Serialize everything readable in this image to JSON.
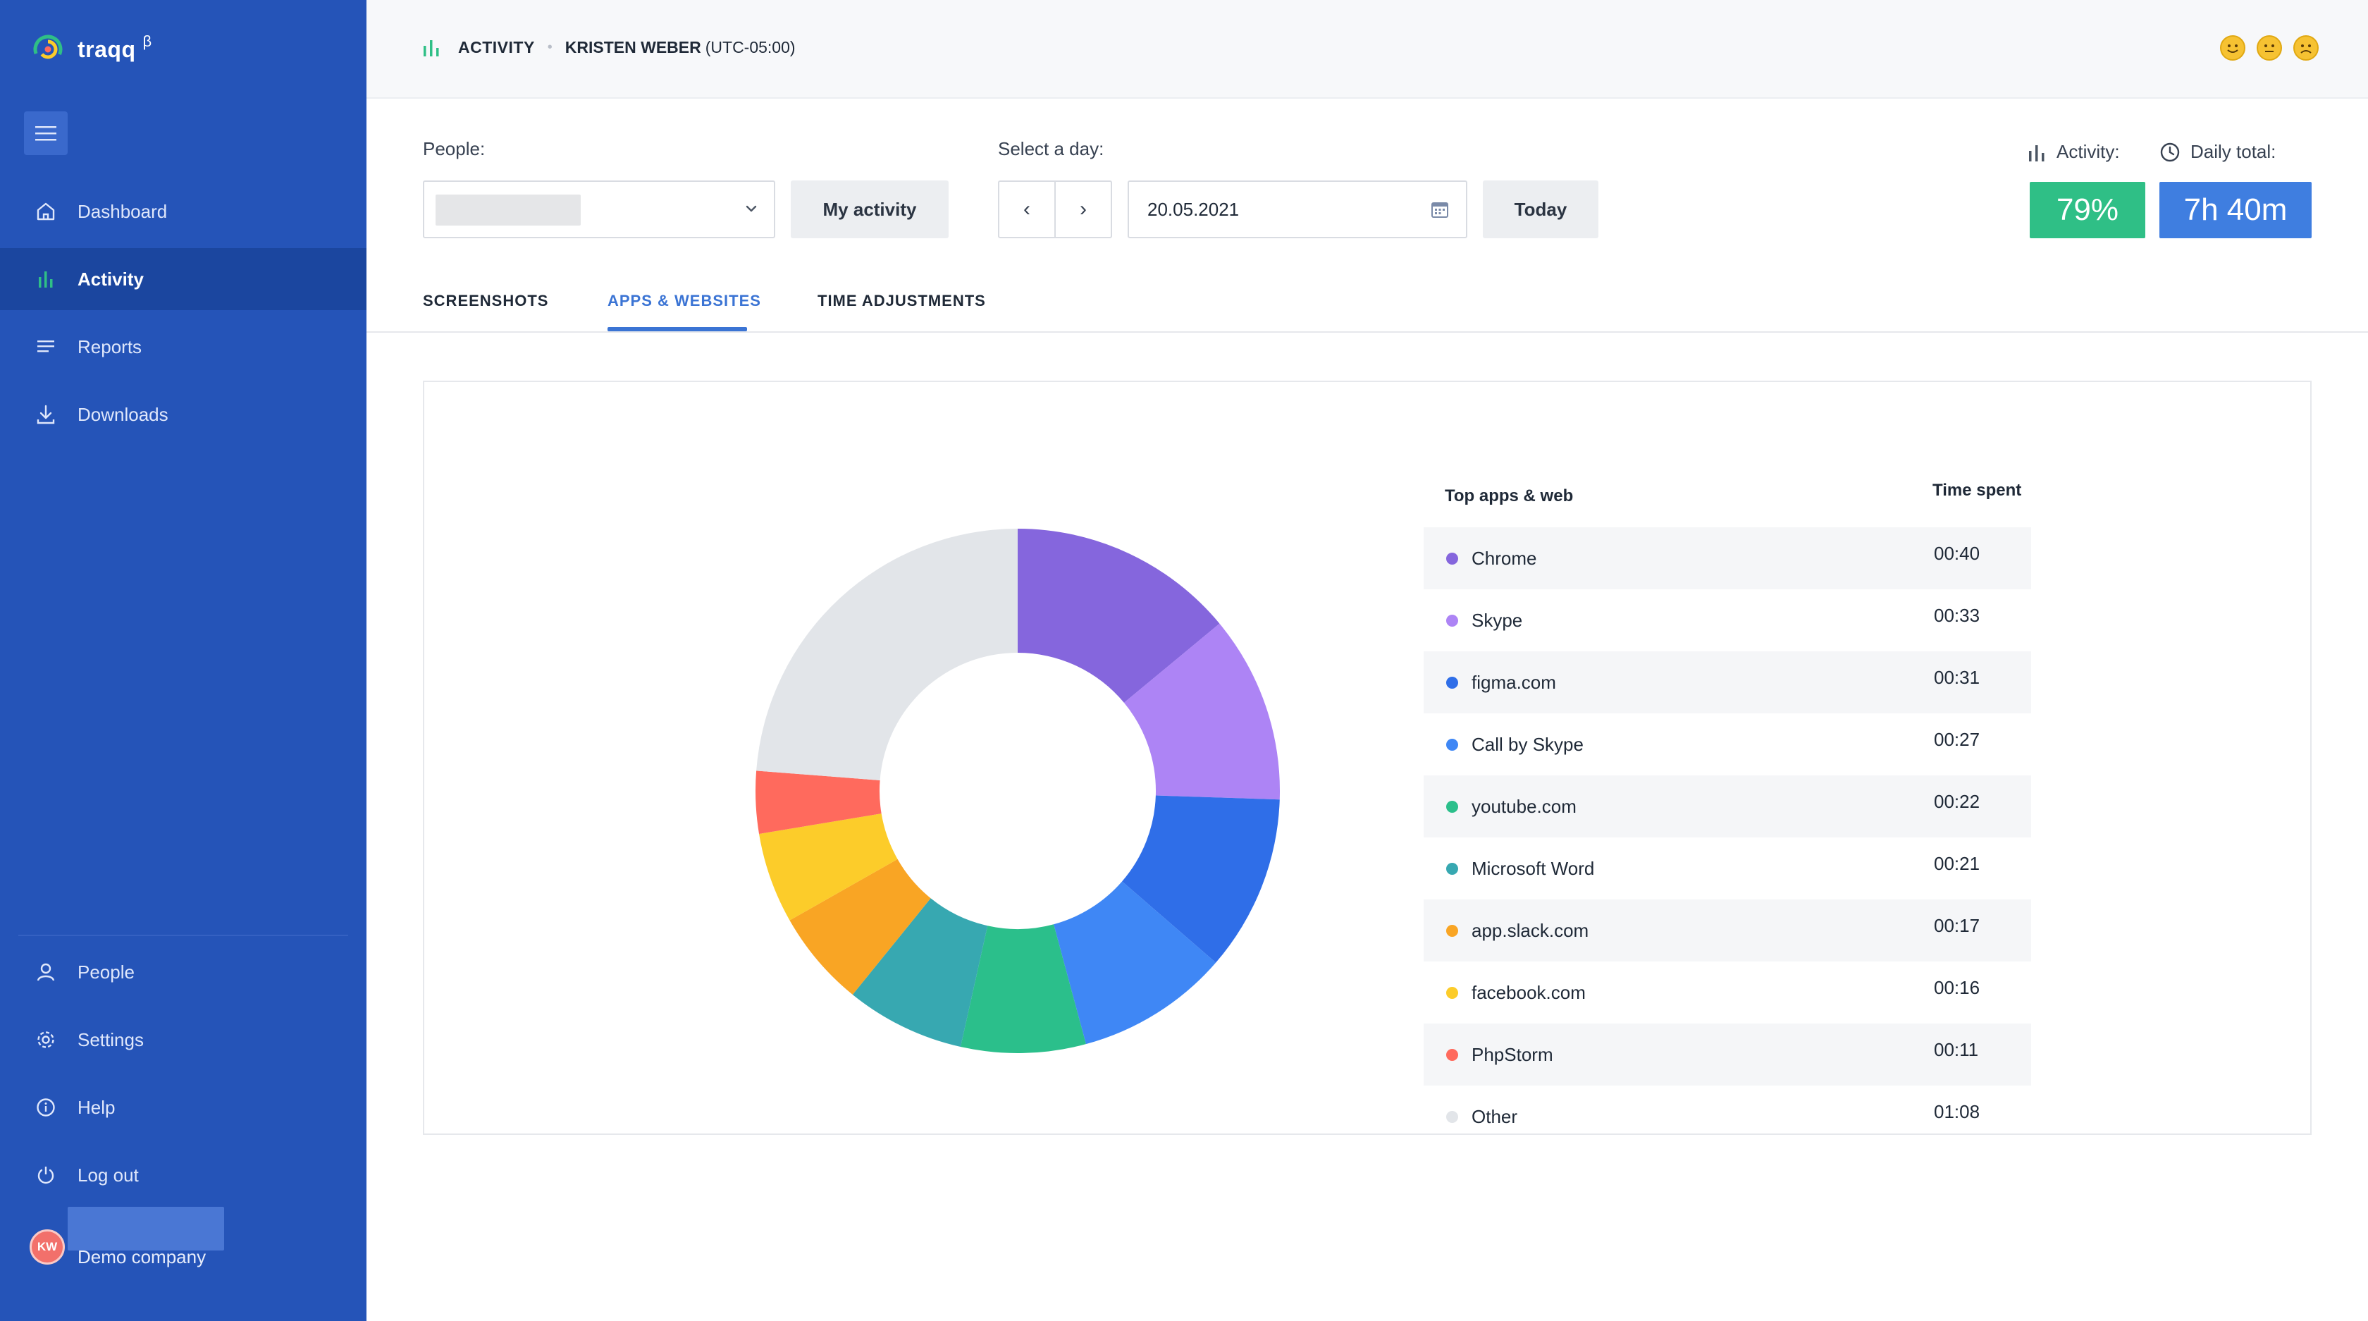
{
  "app": {
    "name": "traqq",
    "beta_mark": "β"
  },
  "sidebar": {
    "nav": [
      {
        "label": "Dashboard",
        "icon": "home-icon",
        "active": false
      },
      {
        "label": "Activity",
        "icon": "bar-chart-icon",
        "active": true
      },
      {
        "label": "Reports",
        "icon": "list-icon",
        "active": false
      },
      {
        "label": "Downloads",
        "icon": "download-icon",
        "active": false
      }
    ],
    "bottom_nav": [
      {
        "label": "People",
        "icon": "user-icon"
      },
      {
        "label": "Settings",
        "icon": "gear-icon"
      },
      {
        "label": "Help",
        "icon": "info-icon"
      },
      {
        "label": "Log out",
        "icon": "power-icon"
      }
    ],
    "user": {
      "initials": "KW",
      "company": "Demo company"
    }
  },
  "header": {
    "section": "ACTIVITY",
    "person": "KRISTEN WEBER",
    "timezone": "(UTC-05:00)",
    "moods": [
      "happy-face-icon",
      "neutral-face-icon",
      "sad-face-icon"
    ]
  },
  "filters": {
    "people_label": "People:",
    "my_activity_label": "My activity",
    "day_label": "Select a day:",
    "prev_label": "‹",
    "next_label": "›",
    "date_value": "20.05.2021",
    "today_label": "Today",
    "activity_label": "Activity:",
    "activity_value": "79%",
    "daily_total_label": "Daily total:",
    "daily_total_value": "7h 40m"
  },
  "tabs": [
    {
      "label": "SCREENSHOTS",
      "active": false
    },
    {
      "label": "APPS & WEBSITES",
      "active": true
    },
    {
      "label": "TIME ADJUSTMENTS",
      "active": false
    }
  ],
  "colors": {
    "sidebar": "#2554b8",
    "activity_green": "#2fbf86",
    "daily_total_blue": "#3f7ee0",
    "accent": "#3b74d4"
  },
  "table": {
    "col_app": "Top apps & web",
    "col_time": "Time spent"
  },
  "chart_data": {
    "type": "pie",
    "donut": true,
    "unit": "mm:ss share of time",
    "categories": [
      "Chrome",
      "Skype",
      "figma.com",
      "Call by Skype",
      "youtube.com",
      "Microsoft Word",
      "app.slack.com",
      "facebook.com",
      "PhpStorm",
      "Other"
    ],
    "times": [
      "00:40",
      "00:33",
      "00:31",
      "00:27",
      "00:22",
      "00:21",
      "00:17",
      "00:16",
      "00:11",
      "01:08"
    ],
    "values": [
      40,
      33,
      31,
      27,
      22,
      21,
      17,
      16,
      11,
      68
    ],
    "colors": [
      "#8566dd",
      "#ad84f5",
      "#2f6ee8",
      "#3f87f5",
      "#2bbf8b",
      "#37a8b1",
      "#f9a524",
      "#fccc2a",
      "#ff6a5d",
      "#e2e5e9"
    ]
  }
}
